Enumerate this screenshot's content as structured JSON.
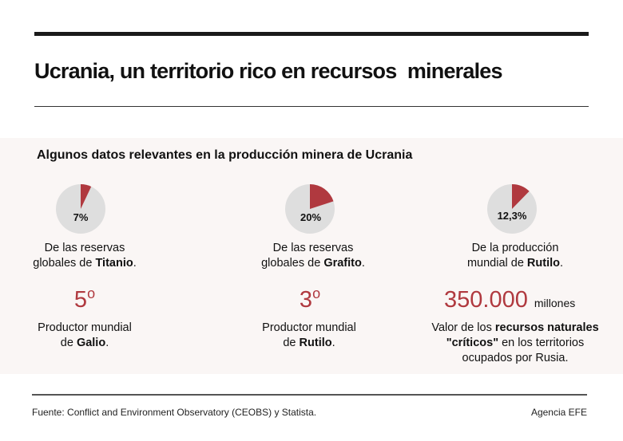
{
  "title": "Ucrania, un territorio rico en recursos  minerales",
  "subtitle": "Algunos datos relevantes en la producción minera de Ucrania",
  "colors": {
    "accent": "#b0393f",
    "pie_rest": "#dedede",
    "panel": "#faf6f5"
  },
  "chart_data": {
    "type": "pie",
    "charts": [
      {
        "label": "7%",
        "value": 7,
        "desc_pre": "De las reservas",
        "desc_mid": "globales de ",
        "desc_bold": "Titanio",
        "desc_post": "."
      },
      {
        "label": "20%",
        "value": 20,
        "desc_pre": "De las reservas",
        "desc_mid": "globales de ",
        "desc_bold": "Grafito",
        "desc_post": "."
      },
      {
        "label": "12,3%",
        "value": 12.3,
        "desc_pre": "De la producción",
        "desc_mid": "mundial de ",
        "desc_bold": "Rutilo",
        "desc_post": "."
      }
    ]
  },
  "facts": [
    {
      "value": "5",
      "sup": "o",
      "line1": "Productor mundial",
      "mid": "de ",
      "bold": "Galio",
      "post": "."
    },
    {
      "value": "3",
      "sup": "o",
      "line1": "Productor mundial",
      "mid": "de ",
      "bold": "Rutilo",
      "post": "."
    },
    {
      "value": "350.000",
      "unit": "millones",
      "pre": "Valor de los ",
      "bold1": "recursos naturales",
      "bold2": "\"críticos\"",
      "mid": " en los territorios",
      "line3": "ocupados por Rusia."
    }
  ],
  "footer": {
    "source": "Fuente: Conflict and Environment Observatory (CEOBS) y Statista.",
    "credit": "Agencia EFE"
  }
}
